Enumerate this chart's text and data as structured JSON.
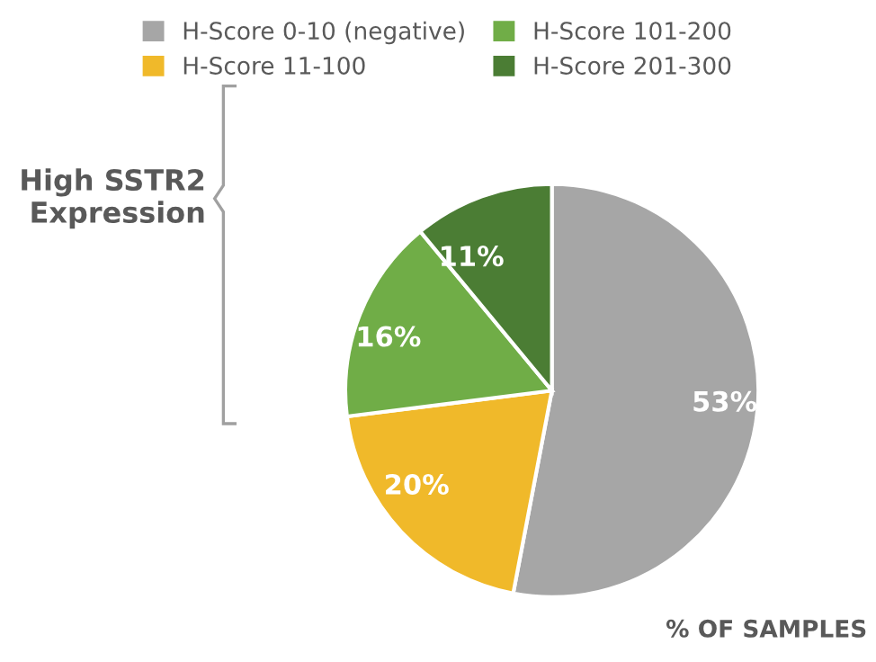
{
  "chart_data": {
    "type": "pie",
    "categories": [
      "H-Score 0-10 (negative)",
      "H-Score 11-100",
      "H-Score 101-200",
      "H-Score 201-300"
    ],
    "values": [
      53,
      20,
      16,
      11
    ],
    "colors": [
      "#a6a6a6",
      "#f0b92a",
      "#70ad47",
      "#4b7d34"
    ],
    "value_labels": [
      "53%",
      "20%",
      "16%",
      "11%"
    ],
    "legend": "top",
    "annotations": [
      "High SSTR2 Expression",
      "% OF SAMPLES"
    ]
  }
}
